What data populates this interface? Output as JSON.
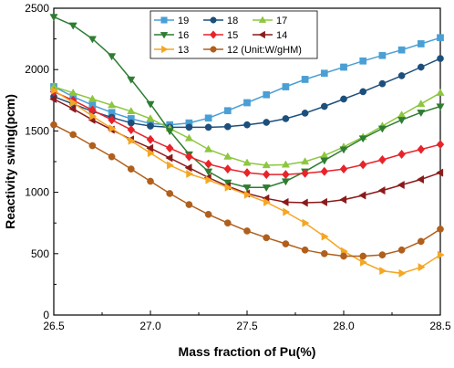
{
  "chart_data": {
    "type": "line",
    "xlabel": "Mass fraction of Pu(%)",
    "ylabel": "Reactivity swing(pcm)",
    "xlim": [
      26.5,
      28.5
    ],
    "ylim": [
      0,
      2500
    ],
    "xticks": [
      "26.5",
      "27.0",
      "27.5",
      "28.0",
      "28.5"
    ],
    "yticks": [
      "0",
      "500",
      "1000",
      "1500",
      "2000",
      "2500"
    ],
    "x": [
      26.5,
      26.6,
      26.7,
      26.8,
      26.9,
      27.0,
      27.1,
      27.2,
      27.3,
      27.4,
      27.5,
      27.6,
      27.7,
      27.8,
      27.9,
      28.0,
      28.1,
      28.2,
      28.3,
      28.4,
      28.5
    ],
    "grid": false,
    "legend_position": "top-center",
    "series": [
      {
        "name": "19",
        "color": "#4a9fd4",
        "marker": "square",
        "values": [
          1860,
          1780,
          1710,
          1650,
          1600,
          1560,
          1550,
          1565,
          1605,
          1665,
          1730,
          1795,
          1860,
          1920,
          1970,
          2020,
          2070,
          2115,
          2160,
          2210,
          2260
        ]
      },
      {
        "name": "18",
        "color": "#1d4f7c",
        "marker": "circle",
        "values": [
          1780,
          1720,
          1660,
          1610,
          1565,
          1540,
          1530,
          1530,
          1530,
          1535,
          1550,
          1570,
          1600,
          1645,
          1700,
          1760,
          1820,
          1885,
          1950,
          2020,
          2090
        ]
      },
      {
        "name": "17",
        "color": "#8dc63f",
        "marker": "triangle-up",
        "values": [
          1860,
          1810,
          1760,
          1710,
          1660,
          1600,
          1520,
          1440,
          1350,
          1290,
          1240,
          1220,
          1225,
          1250,
          1300,
          1370,
          1450,
          1540,
          1630,
          1720,
          1810
        ]
      },
      {
        "name": "16",
        "color": "#2e7d32",
        "marker": "triangle-down",
        "values": [
          2430,
          2360,
          2250,
          2110,
          1920,
          1720,
          1500,
          1310,
          1170,
          1080,
          1040,
          1040,
          1090,
          1170,
          1260,
          1350,
          1440,
          1520,
          1590,
          1650,
          1700
        ]
      },
      {
        "name": "15",
        "color": "#e8232a",
        "marker": "diamond",
        "values": [
          1820,
          1750,
          1670,
          1590,
          1510,
          1430,
          1360,
          1290,
          1230,
          1190,
          1160,
          1145,
          1145,
          1155,
          1170,
          1190,
          1225,
          1265,
          1310,
          1350,
          1390
        ]
      },
      {
        "name": "14",
        "color": "#8b1a1a",
        "marker": "triangle-left",
        "values": [
          1760,
          1680,
          1590,
          1510,
          1430,
          1360,
          1280,
          1200,
          1120,
          1050,
          990,
          950,
          920,
          915,
          920,
          940,
          975,
          1015,
          1060,
          1105,
          1160
        ]
      },
      {
        "name": "13",
        "color": "#f5a623",
        "marker": "triangle-right",
        "values": [
          1830,
          1730,
          1620,
          1520,
          1420,
          1320,
          1220,
          1150,
          1100,
          1040,
          980,
          920,
          840,
          750,
          640,
          520,
          430,
          360,
          340,
          390,
          490
        ]
      },
      {
        "name": "12 (Unit:W/gHM)",
        "color": "#b05f1c",
        "marker": "circle",
        "values": [
          1550,
          1470,
          1380,
          1290,
          1190,
          1090,
          990,
          900,
          820,
          750,
          685,
          630,
          580,
          530,
          500,
          480,
          480,
          490,
          530,
          600,
          700
        ]
      }
    ]
  }
}
